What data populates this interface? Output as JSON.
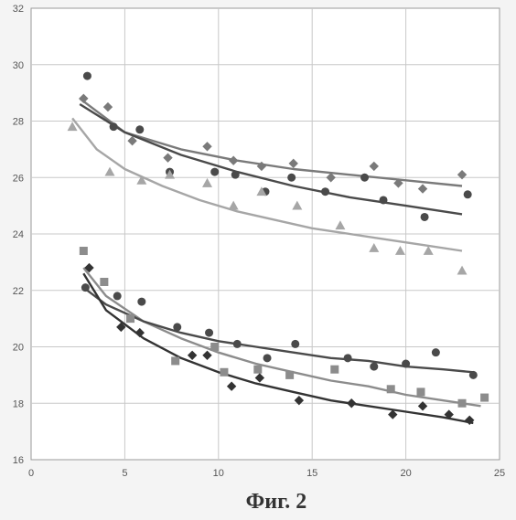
{
  "caption": "Фиг. 2",
  "chart_data": {
    "type": "scatter",
    "title": "",
    "xlabel": "",
    "ylabel": "",
    "xlim": [
      0,
      25
    ],
    "ylim": [
      16,
      32
    ],
    "xticks": [
      "0",
      "5",
      "10",
      "15",
      "20",
      "25"
    ],
    "yticks": [
      "16",
      "18",
      "20",
      "22",
      "24",
      "26",
      "28",
      "30",
      "32"
    ],
    "grid": true,
    "legend": "none",
    "series": [
      {
        "marker": "diamond",
        "color": "#7a7a7a",
        "x": [
          2.8,
          4.1,
          5.4,
          7.3,
          9.4,
          10.8,
          12.3,
          14.0,
          16.0,
          18.3,
          19.6,
          20.9,
          23.0
        ],
        "y": [
          28.8,
          28.5,
          27.3,
          26.7,
          27.1,
          26.6,
          26.4,
          26.5,
          26.0,
          26.4,
          25.8,
          25.6,
          26.1
        ],
        "fit": {
          "x": [
            2.6,
            5,
            8,
            11,
            14,
            17,
            20,
            23
          ],
          "y": [
            28.8,
            27.6,
            27.0,
            26.6,
            26.3,
            26.1,
            25.9,
            25.7
          ]
        }
      },
      {
        "marker": "circle",
        "color": "#4a4a4a",
        "x": [
          3.0,
          4.4,
          5.8,
          7.4,
          9.8,
          10.9,
          12.5,
          13.9,
          15.7,
          17.8,
          18.8,
          21.0,
          23.3
        ],
        "y": [
          29.6,
          27.8,
          27.7,
          26.2,
          26.2,
          26.1,
          25.5,
          26.0,
          25.5,
          26.0,
          25.2,
          24.6,
          25.4
        ],
        "fit": {
          "x": [
            2.6,
            5,
            8,
            11,
            14,
            17,
            20,
            23
          ],
          "y": [
            28.6,
            27.6,
            26.8,
            26.2,
            25.7,
            25.3,
            25.0,
            24.7
          ]
        }
      },
      {
        "marker": "triangle",
        "color": "#a6a6a6",
        "x": [
          2.2,
          4.2,
          5.9,
          7.4,
          9.4,
          10.8,
          12.3,
          14.2,
          16.5,
          18.3,
          19.7,
          21.2,
          23.0
        ],
        "y": [
          27.8,
          26.2,
          25.9,
          26.1,
          25.8,
          25.0,
          25.5,
          25.0,
          24.3,
          23.5,
          23.4,
          23.4,
          22.7
        ],
        "fit": {
          "x": [
            2.2,
            3.5,
            5,
            7,
            9,
            11,
            13,
            15,
            17,
            19,
            21,
            23
          ],
          "y": [
            28.1,
            27.0,
            26.3,
            25.7,
            25.2,
            24.8,
            24.5,
            24.2,
            24.0,
            23.8,
            23.6,
            23.4
          ]
        }
      },
      {
        "marker": "square",
        "color": "#8c8c8c",
        "x": [
          2.8,
          3.9,
          5.3,
          7.7,
          9.8,
          10.3,
          12.1,
          13.8,
          16.2,
          19.2,
          20.8,
          23.0,
          24.2
        ],
        "y": [
          23.4,
          22.3,
          21.0,
          19.5,
          20.0,
          19.1,
          19.2,
          19.0,
          19.2,
          18.5,
          18.4,
          18.0,
          18.2
        ],
        "fit": {
          "x": [
            2.8,
            4,
            6,
            8,
            10,
            12,
            14,
            16,
            18,
            20,
            22,
            24
          ],
          "y": [
            22.8,
            21.8,
            20.9,
            20.3,
            19.8,
            19.4,
            19.1,
            18.8,
            18.6,
            18.3,
            18.1,
            17.9
          ]
        }
      },
      {
        "marker": "circle",
        "color": "#4a4a4a",
        "x": [
          2.9,
          4.6,
          5.9,
          7.8,
          9.5,
          11.0,
          12.6,
          14.1,
          16.9,
          18.3,
          20.0,
          21.6,
          23.6
        ],
        "y": [
          22.1,
          21.8,
          21.6,
          20.7,
          20.5,
          20.1,
          19.6,
          20.1,
          19.6,
          19.3,
          19.4,
          19.8,
          19.0
        ],
        "fit": {
          "x": [
            2.8,
            4,
            6,
            8,
            10,
            12,
            14,
            16,
            18,
            20,
            22,
            23.6
          ],
          "y": [
            22.1,
            21.5,
            20.9,
            20.5,
            20.2,
            20.0,
            19.8,
            19.6,
            19.5,
            19.3,
            19.2,
            19.1
          ]
        }
      },
      {
        "marker": "diamond",
        "color": "#333333",
        "x": [
          3.1,
          4.8,
          5.8,
          8.6,
          9.4,
          10.7,
          12.2,
          14.3,
          17.1,
          19.3,
          20.9,
          22.3,
          23.4
        ],
        "y": [
          22.8,
          20.7,
          20.5,
          19.7,
          19.7,
          18.6,
          18.9,
          18.1,
          18.0,
          17.6,
          17.9,
          17.6,
          17.4
        ],
        "fit": {
          "x": [
            2.8,
            4,
            6,
            8,
            10,
            12,
            14,
            16,
            18,
            20,
            22,
            23.6
          ],
          "y": [
            22.6,
            21.3,
            20.3,
            19.6,
            19.1,
            18.7,
            18.4,
            18.1,
            17.9,
            17.7,
            17.5,
            17.3
          ]
        }
      }
    ]
  }
}
